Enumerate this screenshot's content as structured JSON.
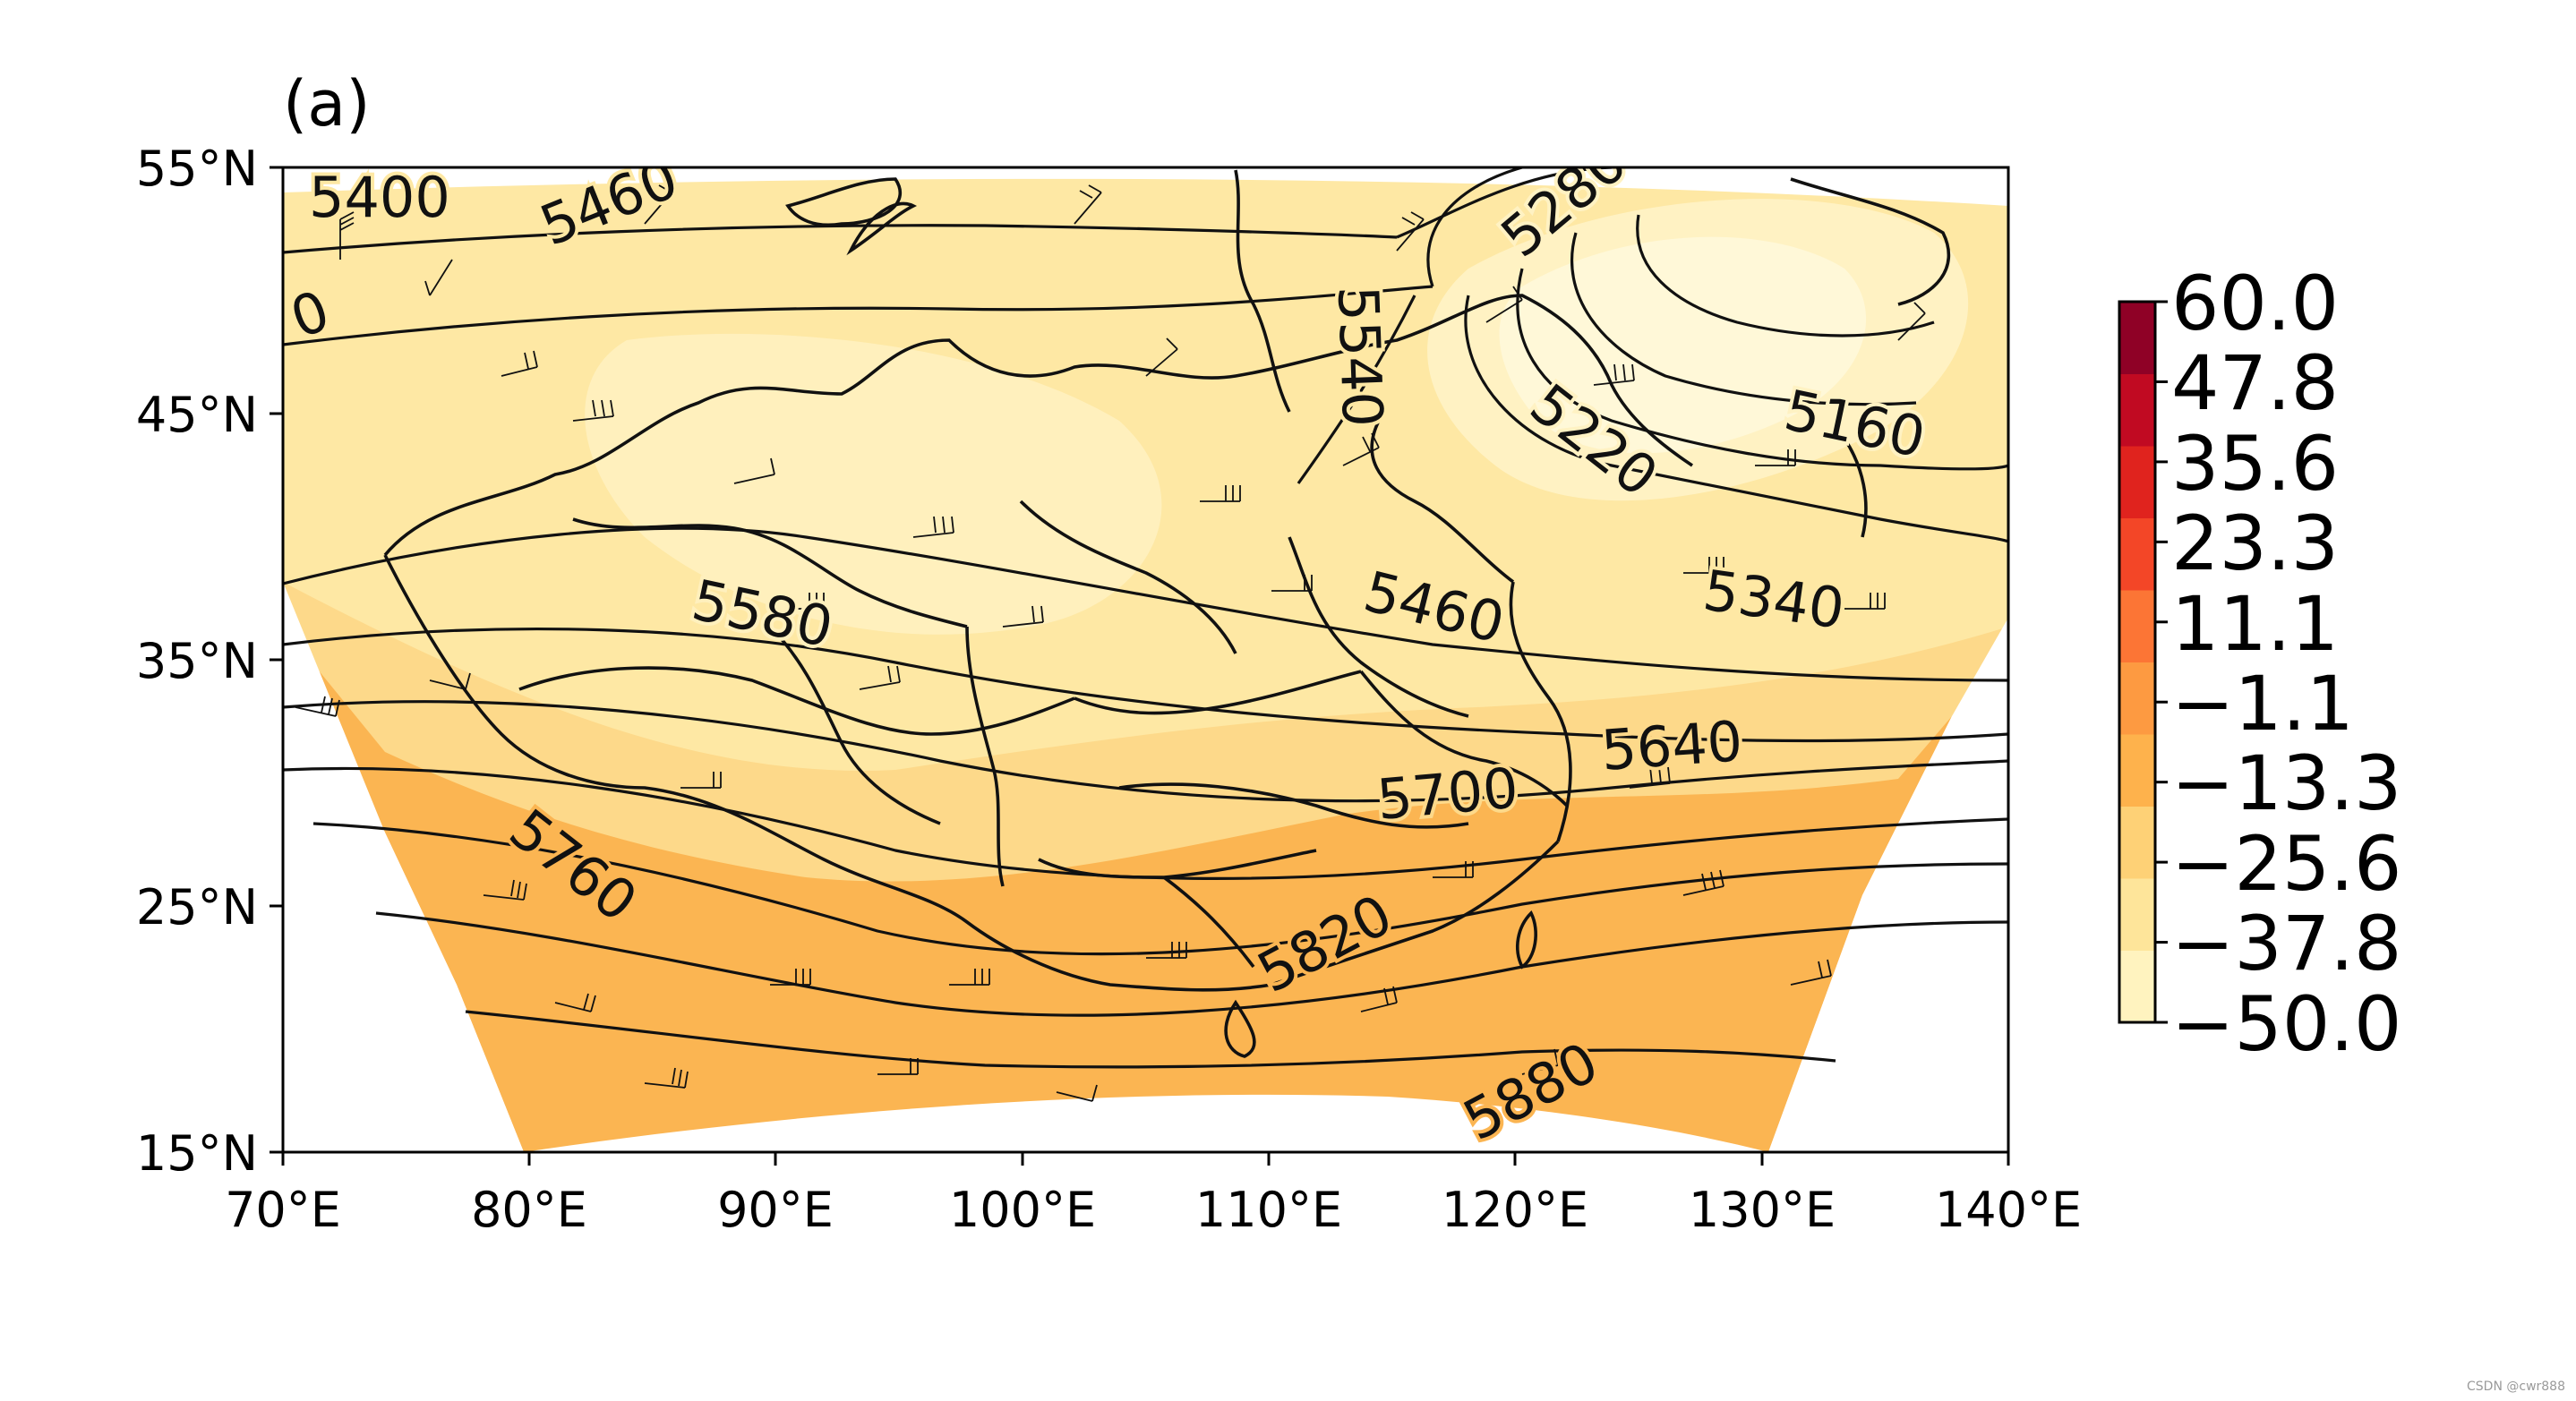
{
  "panel_label": "(a)",
  "watermark": "CSDN @cwr888",
  "map": {
    "x_ticks": [
      "70°E",
      "80°E",
      "90°E",
      "100°E",
      "110°E",
      "120°E",
      "130°E",
      "140°E"
    ],
    "y_ticks": [
      "55°N",
      "45°N",
      "35°N",
      "25°N",
      "15°N"
    ],
    "contour_labels": [
      "5400",
      "5460",
      "0",
      "5540",
      "5580",
      "5160",
      "5220",
      "5280",
      "5340",
      "5460",
      "5640",
      "5700",
      "5760",
      "5820",
      "5880"
    ]
  },
  "colorbar": {
    "tick_labels": [
      "60.0",
      "47.8",
      "35.6",
      "23.3",
      "11.1",
      "−1.1",
      "−13.3",
      "−25.6",
      "−37.8",
      "−50.0"
    ],
    "colors": [
      "#fff3bf",
      "#fee59a",
      "#fed176",
      "#feb24c",
      "#fd9a41",
      "#fc7535",
      "#f34627",
      "#e0231e",
      "#c10a22",
      "#8f0126"
    ]
  },
  "colors": {
    "field_north": "#fee8a4",
    "field_mid": "#fdd98a",
    "field_south": "#fbb552",
    "field_cold_core": "#fff2c3",
    "contour": "#111111"
  }
}
